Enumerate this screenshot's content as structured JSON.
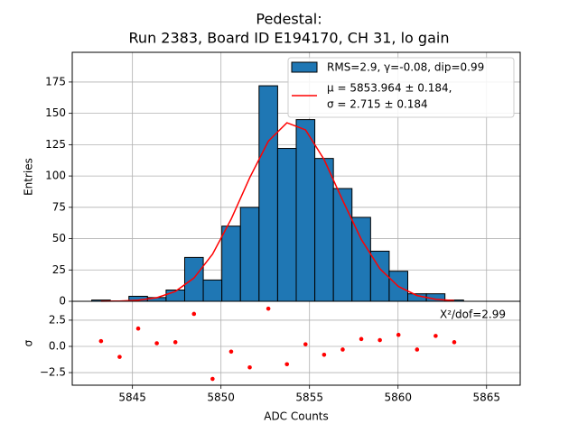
{
  "chart_data": [
    {
      "type": "histogram",
      "title": [
        "Pedestal:",
        "Run 2383, Board ID E194170, CH 31, lo gain"
      ],
      "ylabel": "Entries",
      "bins": [
        5842.7,
        5843.75,
        5844.8,
        5845.85,
        5846.9,
        5847.95,
        5849.0,
        5850.05,
        5851.1,
        5852.15,
        5853.2,
        5854.25,
        5855.3,
        5856.35,
        5857.4,
        5858.45,
        5859.5,
        5860.55,
        5861.6,
        5862.65,
        5863.7
      ],
      "series": [
        {
          "name": "RMS=2.9, γ=-0.08, dip=0.99",
          "color": "#1f77b4",
          "values": [
            1,
            0,
            4,
            3,
            9,
            35,
            17,
            60,
            75,
            172,
            122,
            145,
            114,
            90,
            67,
            40,
            24,
            6,
            6,
            1
          ]
        },
        {
          "name": [
            "μ = 5853.964 ± 0.184,",
            "σ = 2.715 ± 0.184"
          ],
          "color": "#ff0000",
          "x": [
            5843.225,
            5844.275,
            5845.325,
            5846.375,
            5847.425,
            5848.475,
            5849.525,
            5850.575,
            5851.625,
            5852.675,
            5853.725,
            5854.775,
            5855.825,
            5856.875,
            5857.925,
            5858.975,
            5860.025,
            5861.075,
            5862.125,
            5863.175
          ],
          "values": [
            0.1,
            0.2,
            0.9,
            2.9,
            7.9,
            18.6,
            37.6,
            65.6,
            98.7,
            127.8,
            142.5,
            136.8,
            113.1,
            80.5,
            49.4,
            26.0,
            11.8,
            4.6,
            1.6,
            0.5
          ]
        }
      ],
      "xlim": [
        5841.6,
        5866.9
      ],
      "xticks": [
        5845,
        5850,
        5855,
        5860,
        5865
      ],
      "ylim": [
        0,
        198.7
      ],
      "yticks": [
        0,
        25,
        50,
        75,
        100,
        125,
        150,
        175
      ],
      "grid": true,
      "legend": "upper right"
    },
    {
      "type": "scatter",
      "xlabel": "ADC Counts",
      "ylabel": "σ",
      "annotation": "Χ²/dof=2.99",
      "color": "#ff0000",
      "x": [
        5843.225,
        5844.275,
        5845.325,
        5846.375,
        5847.425,
        5848.475,
        5849.525,
        5850.575,
        5851.625,
        5852.675,
        5853.725,
        5854.775,
        5855.825,
        5856.875,
        5857.925,
        5858.975,
        5860.025,
        5861.075,
        5862.125,
        5863.175
      ],
      "values": [
        0.5,
        -1.0,
        1.7,
        0.3,
        0.4,
        3.1,
        -3.1,
        -0.5,
        -2.0,
        3.6,
        -1.7,
        0.2,
        -0.8,
        -0.3,
        0.7,
        0.6,
        1.1,
        -0.3,
        1.0,
        0.4
      ],
      "xlim": [
        5841.6,
        5866.9
      ],
      "xticks": [
        5845,
        5850,
        5855,
        5860,
        5865
      ],
      "ylim": [
        -3.7,
        4.3
      ],
      "yticks": [
        {
          "value": -2.5,
          "label": "−2.5"
        },
        {
          "value": 0,
          "label": "0.0"
        },
        2.5
      ],
      "grid": true
    }
  ]
}
